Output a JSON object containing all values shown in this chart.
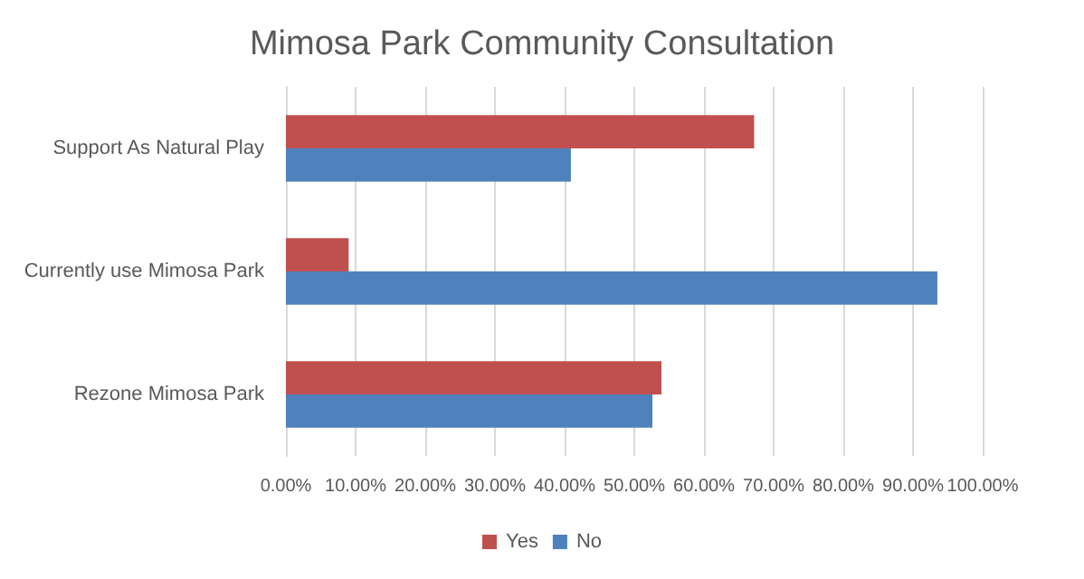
{
  "chart_data": {
    "type": "bar",
    "orientation": "horizontal",
    "title": "Mimosa Park Community Consultation",
    "categories": [
      "Support As Natural Play",
      "Currently use Mimosa Park",
      "Rezone Mimosa Park"
    ],
    "series": [
      {
        "name": "Yes",
        "color": "#c0504d",
        "values": [
          67.2,
          9.0,
          53.9
        ]
      },
      {
        "name": "No",
        "color": "#4f81bd",
        "values": [
          40.9,
          93.5,
          52.6
        ]
      }
    ],
    "xlim": [
      0,
      100
    ],
    "xticks": [
      {
        "value": 0,
        "label": "0.00%"
      },
      {
        "value": 10,
        "label": "10.00%"
      },
      {
        "value": 20,
        "label": "20.00%"
      },
      {
        "value": 30,
        "label": "30.00%"
      },
      {
        "value": 40,
        "label": "40.00%"
      },
      {
        "value": 50,
        "label": "50.00%"
      },
      {
        "value": 60,
        "label": "60.00%"
      },
      {
        "value": 70,
        "label": "70.00%"
      },
      {
        "value": 80,
        "label": "80.00%"
      },
      {
        "value": 90,
        "label": "90.00%"
      },
      {
        "value": 100,
        "label": "100.00%"
      }
    ],
    "grid": "x",
    "legend": "bottom"
  }
}
